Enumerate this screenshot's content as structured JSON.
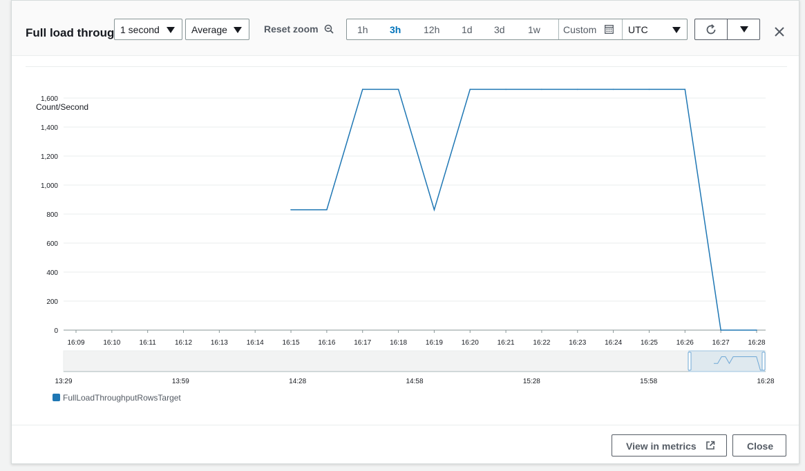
{
  "modal": {
    "title": "Full load throughput",
    "period_select": "1 second",
    "statistic_select": "Average",
    "reset_zoom": "Reset zoom",
    "ranges": [
      "1h",
      "3h",
      "12h",
      "1d",
      "3d",
      "1w"
    ],
    "active_range": "3h",
    "custom": "Custom",
    "timezone_select": "UTC",
    "icons": {
      "zoom": "zoom-out-icon",
      "calendar": "calendar-icon",
      "refresh": "refresh-icon",
      "dropdown": "caret-down-icon",
      "close": "close-icon",
      "external": "external-link-icon"
    },
    "footer": {
      "view_in_metrics": "View in metrics",
      "close": "Close"
    }
  },
  "chart_data": {
    "type": "line",
    "ylabel": "Count/Second",
    "ylim": [
      0,
      1700
    ],
    "yticks": [
      "0",
      "200",
      "400",
      "600",
      "800",
      "1,000",
      "1,200",
      "1,400",
      "1,600"
    ],
    "x": [
      "16:15",
      "16:16",
      "16:17",
      "16:18",
      "16:19",
      "16:20",
      "16:21",
      "16:22",
      "16:23",
      "16:24",
      "16:25",
      "16:26",
      "16:27",
      "16:28"
    ],
    "xticks": [
      "16:09",
      "16:10",
      "16:11",
      "16:12",
      "16:13",
      "16:14",
      "16:15",
      "16:16",
      "16:17",
      "16:18",
      "16:19",
      "16:20",
      "16:21",
      "16:22",
      "16:23",
      "16:24",
      "16:25",
      "16:26",
      "16:27",
      "16:28"
    ],
    "series": [
      {
        "name": "FullLoadThroughputRowsTarget",
        "color": "#1f77b4",
        "values": [
          830,
          830,
          1660,
          1660,
          830,
          1660,
          1660,
          1660,
          1660,
          1660,
          1660,
          1660,
          0,
          0
        ]
      }
    ],
    "navigator_ticks": [
      "13:29",
      "13:59",
      "14:28",
      "14:58",
      "15:28",
      "15:58",
      "16:28"
    ],
    "grid": true,
    "legend": "bottom-left"
  }
}
